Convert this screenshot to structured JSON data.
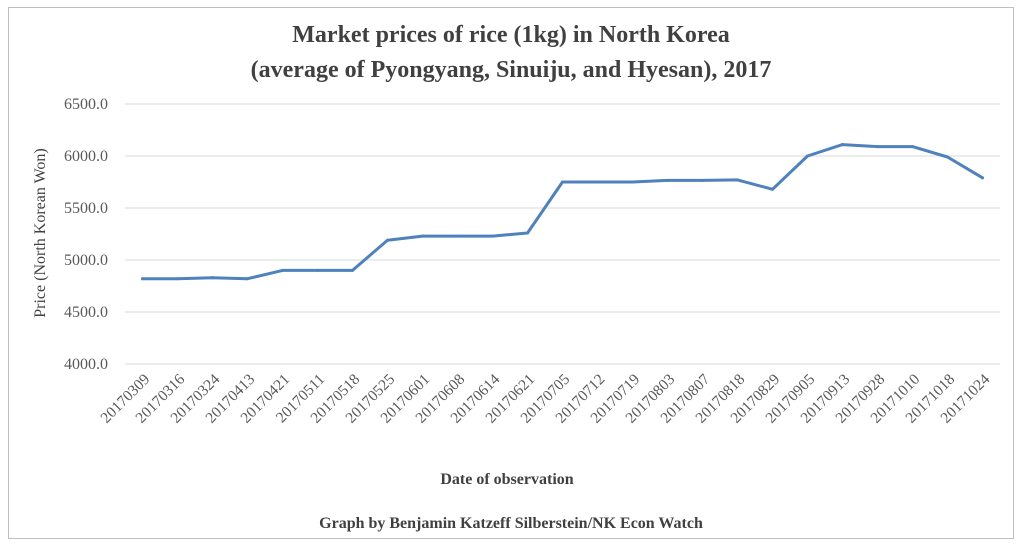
{
  "chart_data": {
    "type": "line",
    "title_line1": "Market prices of rice (1kg) in North Korea",
    "title_line2": "(average of Pyongyang, Sinuiju, and Hyesan), 2017",
    "xlabel": "Date of observation",
    "ylabel": "Price (North Korean Won)",
    "credit": "Graph by Benjamin Katzeff Silberstein/NK Econ Watch",
    "ylim": [
      4000,
      6500
    ],
    "yticks": [
      "4000.0",
      "4500.0",
      "5000.0",
      "5500.0",
      "6000.0",
      "6500.0"
    ],
    "grid": true,
    "line_color": "#4f81bd",
    "categories": [
      "20170309",
      "20170316",
      "20170324",
      "20170413",
      "20170421",
      "20170511",
      "20170518",
      "20170525",
      "20170601",
      "20170608",
      "20170614",
      "20170621",
      "20170705",
      "20170712",
      "20170719",
      "20170803",
      "20170807",
      "20170818",
      "20170829",
      "20170905",
      "20170913",
      "20170928",
      "20171010",
      "20171018",
      "20171024"
    ],
    "values": [
      4820,
      4820,
      4830,
      4820,
      4900,
      4900,
      4900,
      5190,
      5230,
      5230,
      5230,
      5260,
      5750,
      5750,
      5750,
      5765,
      5765,
      5770,
      5680,
      6000,
      6110,
      6090,
      6090,
      5990,
      5790
    ]
  }
}
